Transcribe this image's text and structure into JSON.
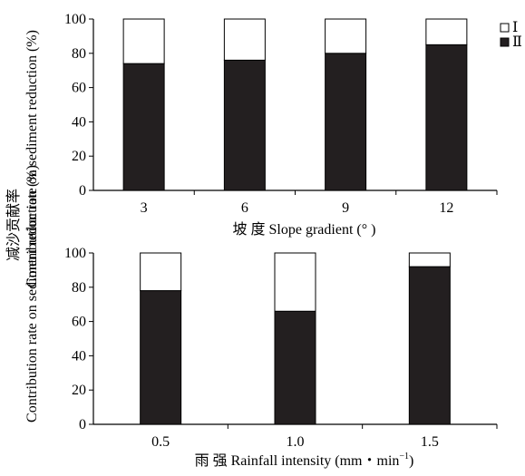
{
  "chart_data": [
    {
      "type": "bar",
      "stacked": true,
      "categories": [
        "3",
        "6",
        "9",
        "12"
      ],
      "series": [
        {
          "name": "Ⅱ",
          "color": "#231f20",
          "values": [
            74,
            76,
            80,
            85
          ]
        },
        {
          "name": "Ⅰ",
          "color": "#ffffff",
          "values": [
            26,
            24,
            20,
            15
          ]
        }
      ],
      "xlabel": "坡 度 Slope gradient (° )",
      "ylim": [
        0,
        100
      ],
      "yticks": [
        "0",
        "20",
        "40",
        "60",
        "80",
        "100"
      ],
      "grid": false,
      "legend": "top-right"
    },
    {
      "type": "bar",
      "stacked": true,
      "categories": [
        "0.5",
        "1.0",
        "1.5"
      ],
      "series": [
        {
          "name": "Ⅱ",
          "color": "#231f20",
          "values": [
            78,
            66,
            92
          ]
        },
        {
          "name": "Ⅰ",
          "color": "#ffffff",
          "values": [
            22,
            34,
            8
          ]
        }
      ],
      "xlabel_main": "雨 强 Rainfall intensity (mm・min",
      "xlabel_sup": "−1",
      "xlabel_end": ")",
      "ylim": [
        0,
        100
      ],
      "yticks": [
        "0",
        "20",
        "40",
        "60",
        "80",
        "100"
      ],
      "grid": false
    }
  ],
  "shared_ylabel": {
    "zh": "减沙贡献率",
    "en1": "Contribution rate on sediment reduction (%)",
    "en2": "Contribution rate on sediment reduction (%)"
  },
  "legend": [
    {
      "label": "Ⅰ",
      "color": "#ffffff"
    },
    {
      "label": "Ⅱ",
      "color": "#231f20"
    }
  ]
}
